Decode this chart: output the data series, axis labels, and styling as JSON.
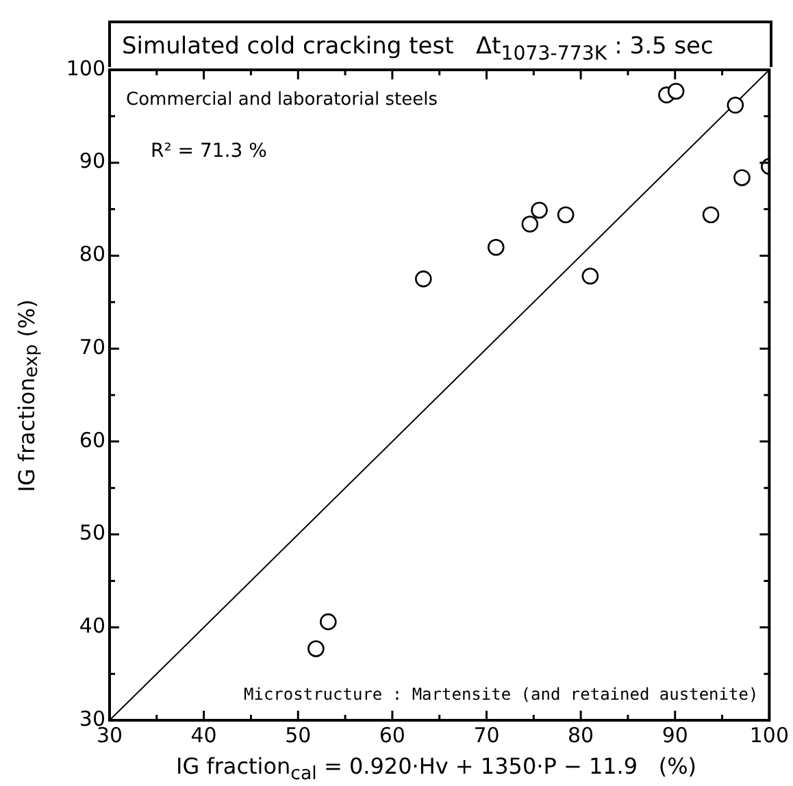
{
  "chart_data": {
    "type": "scatter",
    "title": "Simulated cold cracking test   Δt$_{1073-773K}$ : 3.5 sec",
    "xlabel": "IG fraction$_{cal}$ = 0.920·Hv + 1350·P − 11.9   (%)",
    "ylabel": "IG fraction$_{exp}$ (%)",
    "annotations": [
      "Commercial and laboratorial steels",
      "R² = 71.3 %",
      "Microstructure : Martensite (and retained austenite)"
    ],
    "series": [
      {
        "marker": "circle",
        "color": "#000000",
        "x": [
          89.1,
          90.1,
          96.4,
          100,
          97.1,
          93.8,
          75.6,
          74.6,
          78.4,
          71.0,
          81.0,
          63.3,
          53.2,
          51.9
        ],
        "values": [
          97.3,
          97.7,
          96.2,
          89.6,
          88.4,
          84.4,
          84.9,
          83.4,
          84.4,
          80.9,
          77.8,
          77.5,
          40.6,
          37.7
        ]
      },
      {
        "type": "line",
        "marker": "none",
        "color": "#000000",
        "x": [
          30,
          100
        ],
        "values": [
          30,
          100
        ]
      }
    ],
    "xlim": [
      30,
      100
    ],
    "ylim": [
      30,
      100
    ],
    "xticks": [
      30,
      40,
      50,
      60,
      70,
      80,
      90,
      100
    ],
    "yticks": [
      30,
      40,
      50,
      60,
      70,
      80,
      90,
      100
    ],
    "grid": false,
    "legend": false
  }
}
